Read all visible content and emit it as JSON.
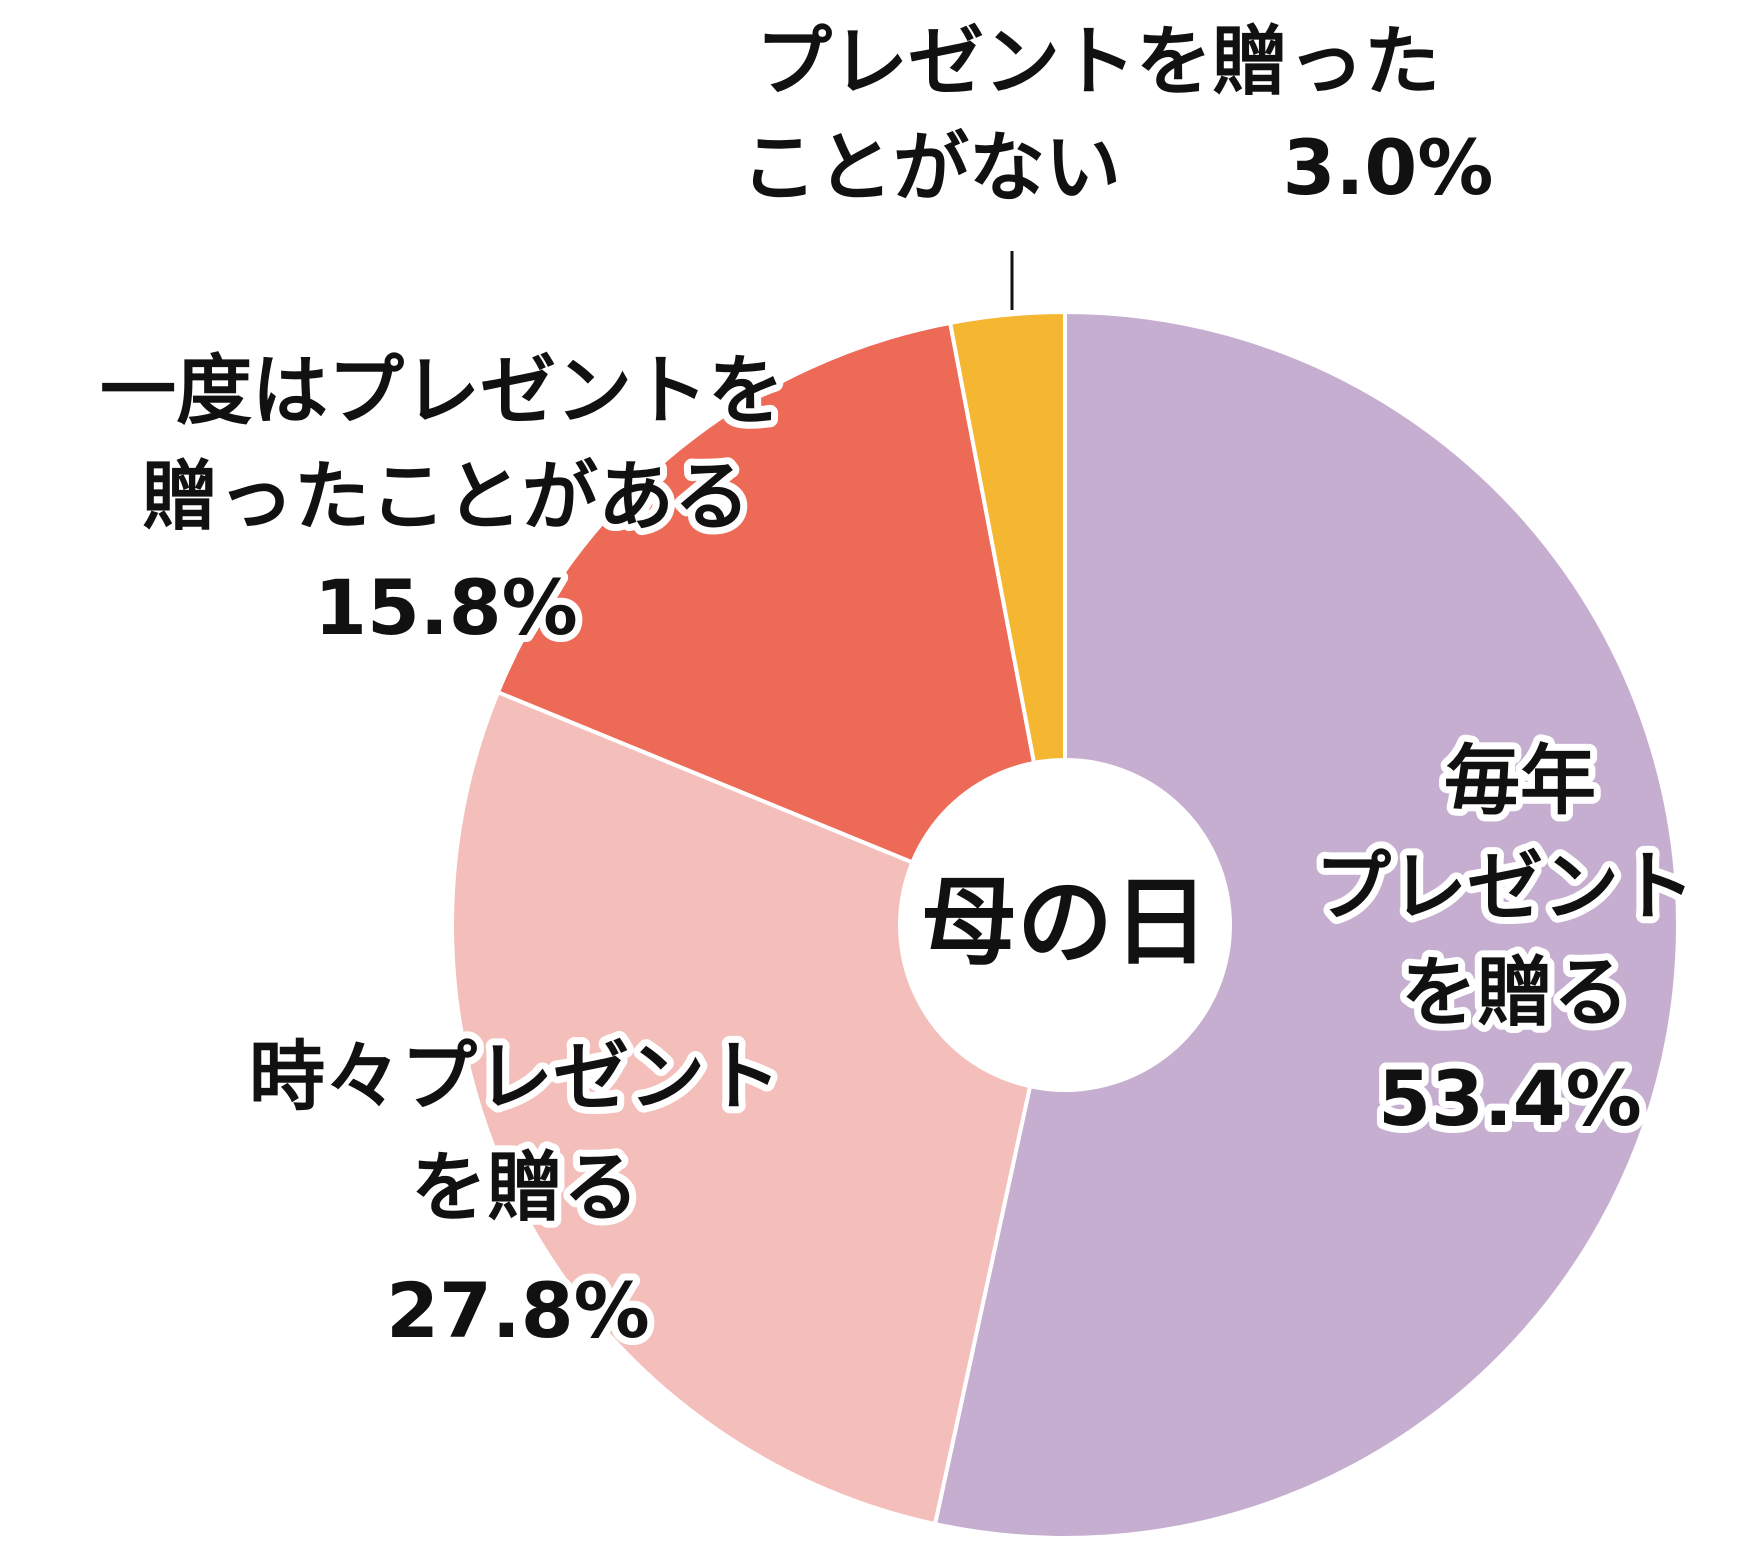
{
  "chart_data": {
    "type": "donut",
    "center_text": "母の日",
    "categories": [
      [
        "毎年",
        "プレゼント",
        "を贈る"
      ],
      [
        "時々プレゼント",
        "を贈る"
      ],
      [
        "一度はプレゼントを",
        "贈ったことがある"
      ],
      [
        "プレゼントを贈った",
        "ことがない"
      ]
    ],
    "values": [
      53.4,
      27.8,
      15.8,
      3.0
    ],
    "value_labels": [
      "53.4%",
      "27.8%",
      "15.8%",
      "3.0%"
    ],
    "colors": [
      "#c6aed0",
      "#f4bfba",
      "#ec6a56",
      "#f5b731"
    ]
  }
}
